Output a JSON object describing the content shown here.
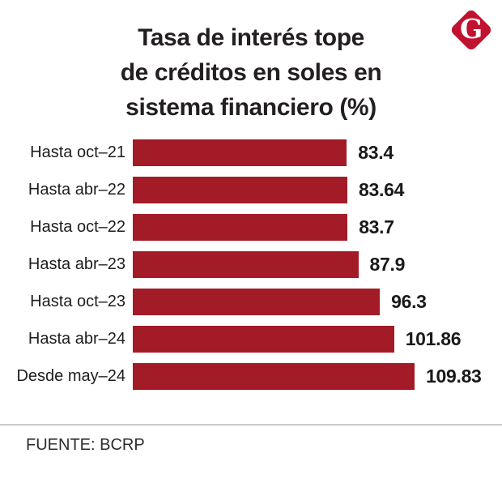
{
  "header": {
    "title_lines": [
      "Tasa de interés tope",
      "de créditos en soles en",
      "sistema financiero (%)"
    ],
    "logo": {
      "letter": "G",
      "color": "#c1122f"
    }
  },
  "chart_data": {
    "type": "bar",
    "orientation": "horizontal",
    "title": "Tasa de interés tope de créditos en soles en sistema financiero (%)",
    "categories": [
      "Hasta oct–21",
      "Hasta abr–22",
      "Hasta oct–22",
      "Hasta abr–23",
      "Hasta oct–23",
      "Hasta abr–24",
      "Desde may–24"
    ],
    "values": [
      83.4,
      83.64,
      83.7,
      87.9,
      96.3,
      101.86,
      109.83
    ],
    "value_labels": [
      "83.4",
      "83.64",
      "83.7",
      "87.9",
      "96.3",
      "101.86",
      "109.83"
    ],
    "xlabel": "",
    "ylabel": "",
    "xlim": [
      0,
      109.83
    ],
    "bar_color": "#a31b27",
    "grid": false,
    "legend": false,
    "value_label_position": "right-of-bar"
  },
  "footer": {
    "source": "FUENTE: BCRP"
  }
}
